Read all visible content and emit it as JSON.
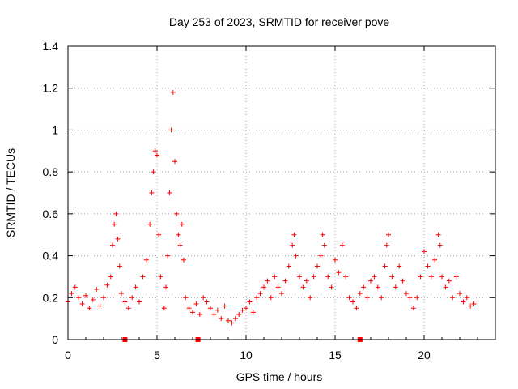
{
  "chart_data": {
    "type": "scatter",
    "title": "Day 253 of 2023, SRMTID for receiver pove",
    "xlabel": "GPS time / hours",
    "ylabel": "SRMTID / TECUs",
    "xlim": [
      0,
      24
    ],
    "ylim": [
      0,
      1.4
    ],
    "x_ticks": [
      0,
      5,
      10,
      15,
      20
    ],
    "y_ticks": [
      0,
      0.2,
      0.4,
      0.6,
      0.8,
      1,
      1.2,
      1.4
    ],
    "x_tick_labels": [
      "0",
      "5",
      "10",
      "15",
      "20"
    ],
    "y_tick_labels": [
      "0",
      "0.2",
      "0.4",
      "0.6",
      "0.8",
      "1",
      "1.2",
      "1.4"
    ],
    "grid": true,
    "marker": "plus",
    "color": "#ff0000",
    "series": [
      {
        "name": "SRMTID",
        "x": [
          0.0,
          0.2,
          0.4,
          0.6,
          0.8,
          1.0,
          1.2,
          1.4,
          1.6,
          1.8,
          2.0,
          2.2,
          2.4,
          2.5,
          2.6,
          2.7,
          2.8,
          2.9,
          3.0,
          3.2,
          3.4,
          3.6,
          3.8,
          4.0,
          4.2,
          4.4,
          4.6,
          4.7,
          4.8,
          4.9,
          5.0,
          5.1,
          5.2,
          5.4,
          5.5,
          5.6,
          5.7,
          5.8,
          5.9,
          6.0,
          6.1,
          6.2,
          6.3,
          6.4,
          6.5,
          6.6,
          6.8,
          7.0,
          7.2,
          7.4,
          7.6,
          7.8,
          8.0,
          8.2,
          8.4,
          8.6,
          8.8,
          9.0,
          9.2,
          9.4,
          9.6,
          9.8,
          10.0,
          10.2,
          10.4,
          10.6,
          10.8,
          11.0,
          11.2,
          11.4,
          11.6,
          11.8,
          12.0,
          12.2,
          12.4,
          12.6,
          12.7,
          12.8,
          13.0,
          13.2,
          13.4,
          13.6,
          13.8,
          14.0,
          14.2,
          14.3,
          14.4,
          14.6,
          14.8,
          15.0,
          15.2,
          15.4,
          15.6,
          15.8,
          16.0,
          16.2,
          16.4,
          16.6,
          16.8,
          17.0,
          17.2,
          17.4,
          17.6,
          17.8,
          17.9,
          18.0,
          18.2,
          18.4,
          18.6,
          18.8,
          19.0,
          19.2,
          19.4,
          19.6,
          19.8,
          20.0,
          20.2,
          20.4,
          20.6,
          20.8,
          20.9,
          21.0,
          21.2,
          21.4,
          21.6,
          21.8,
          22.0,
          22.2,
          22.4,
          22.6,
          22.8
        ],
        "y": [
          0.18,
          0.22,
          0.25,
          0.2,
          0.17,
          0.21,
          0.15,
          0.19,
          0.24,
          0.16,
          0.2,
          0.26,
          0.3,
          0.45,
          0.55,
          0.6,
          0.48,
          0.35,
          0.22,
          0.18,
          0.15,
          0.2,
          0.25,
          0.18,
          0.3,
          0.38,
          0.55,
          0.7,
          0.8,
          0.9,
          0.88,
          0.5,
          0.3,
          0.15,
          0.25,
          0.4,
          0.7,
          1.0,
          1.18,
          0.85,
          0.6,
          0.5,
          0.45,
          0.55,
          0.38,
          0.2,
          0.15,
          0.13,
          0.17,
          0.12,
          0.2,
          0.18,
          0.15,
          0.12,
          0.14,
          0.1,
          0.16,
          0.09,
          0.08,
          0.1,
          0.12,
          0.14,
          0.15,
          0.18,
          0.13,
          0.2,
          0.22,
          0.25,
          0.28,
          0.2,
          0.3,
          0.25,
          0.22,
          0.28,
          0.35,
          0.45,
          0.5,
          0.4,
          0.3,
          0.25,
          0.28,
          0.2,
          0.3,
          0.35,
          0.4,
          0.5,
          0.45,
          0.3,
          0.25,
          0.38,
          0.32,
          0.45,
          0.3,
          0.2,
          0.18,
          0.15,
          0.22,
          0.25,
          0.2,
          0.28,
          0.3,
          0.25,
          0.2,
          0.35,
          0.45,
          0.5,
          0.3,
          0.25,
          0.35,
          0.28,
          0.22,
          0.2,
          0.15,
          0.2,
          0.3,
          0.42,
          0.35,
          0.3,
          0.38,
          0.5,
          0.45,
          0.3,
          0.25,
          0.28,
          0.2,
          0.3,
          0.22,
          0.18,
          0.2,
          0.16,
          0.17
        ]
      }
    ],
    "axis_markers_x": [
      3.2,
      7.3,
      16.4
    ]
  }
}
